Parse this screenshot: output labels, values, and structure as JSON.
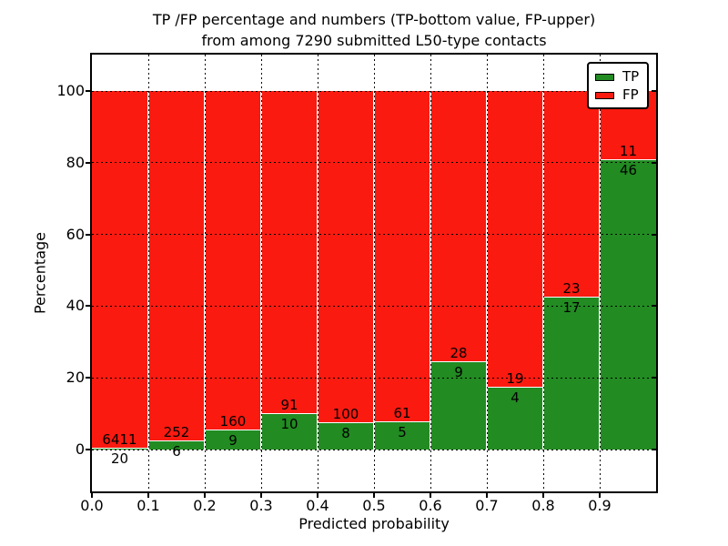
{
  "figure": {
    "title_line1": "TP /FP percentage and numbers (TP-bottom value, FP-upper)",
    "title_line2": "from among 7290 submitted L50-type contacts"
  },
  "colors": {
    "tp": "#228b22",
    "fp": "#fa1a10",
    "grid": "#000000",
    "background": "#ffffff"
  },
  "chart_data": {
    "type": "bar",
    "stacked": true,
    "title": "TP /FP percentage and numbers (TP-bottom value, FP-upper) from among 7290 submitted L50-type contacts",
    "xlabel": "Predicted probability",
    "ylabel": "Percentage",
    "total_submitted": 7290,
    "xlim": [
      0.0,
      1.0
    ],
    "ylim": [
      -11.65,
      110.15
    ],
    "grid": "dotted both axes",
    "x_tick_labels": [
      "0.0",
      "0.1",
      "0.2",
      "0.3",
      "0.4",
      "0.5",
      "0.6",
      "0.7",
      "0.8",
      "0.9"
    ],
    "y_tick_values": [
      0,
      20,
      40,
      60,
      80,
      100
    ],
    "legend": {
      "position": "upper right",
      "entries": [
        {
          "label": "TP",
          "color": "#228b22"
        },
        {
          "label": "FP",
          "color": "#fa1a10"
        }
      ]
    },
    "bins": [
      {
        "range": [
          0.0,
          0.1
        ],
        "tp": 20,
        "fp": 6411
      },
      {
        "range": [
          0.1,
          0.2
        ],
        "tp": 6,
        "fp": 252
      },
      {
        "range": [
          0.2,
          0.3
        ],
        "tp": 9,
        "fp": 160
      },
      {
        "range": [
          0.3,
          0.4
        ],
        "tp": 10,
        "fp": 91
      },
      {
        "range": [
          0.4,
          0.5
        ],
        "tp": 8,
        "fp": 100
      },
      {
        "range": [
          0.5,
          0.6
        ],
        "tp": 5,
        "fp": 61
      },
      {
        "range": [
          0.6,
          0.7
        ],
        "tp": 9,
        "fp": 28
      },
      {
        "range": [
          0.7,
          0.8
        ],
        "tp": 4,
        "fp": 19
      },
      {
        "range": [
          0.8,
          0.9
        ],
        "tp": 17,
        "fp": 23
      },
      {
        "range": [
          0.9,
          1.0
        ],
        "tp": 46,
        "fp": 11
      }
    ]
  }
}
